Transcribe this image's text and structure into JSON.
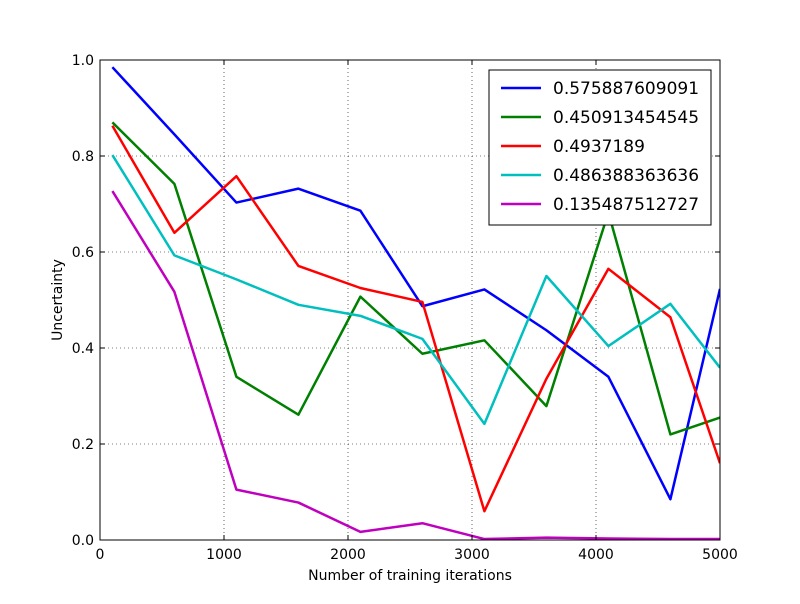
{
  "chart_data": {
    "type": "line",
    "title": "",
    "xlabel": "Number of training iterations",
    "ylabel": "Uncertainty",
    "xlim": [
      0,
      5000
    ],
    "ylim": [
      0.0,
      1.0
    ],
    "xticks": [
      0,
      1000,
      2000,
      3000,
      4000,
      5000
    ],
    "xtick_labels": [
      "0",
      "1000",
      "2000",
      "3000",
      "4000",
      "5000"
    ],
    "yticks": [
      0.0,
      0.2,
      0.4,
      0.6,
      0.8,
      1.0
    ],
    "ytick_labels": [
      "0.0",
      "0.2",
      "0.4",
      "0.6",
      "0.8",
      "1.0"
    ],
    "grid": true,
    "grid_style": "dotted",
    "legend_position": "top-right",
    "x": [
      100,
      600,
      1100,
      1600,
      2100,
      2600,
      3100,
      3600,
      4100,
      4600,
      5000
    ],
    "series": [
      {
        "name": "0.575887609091",
        "color": "#0000ff",
        "values": [
          0.985,
          0.845,
          0.703,
          0.732,
          0.686,
          0.487,
          0.522,
          0.437,
          0.34,
          0.085,
          0.523
        ]
      },
      {
        "name": "0.450913454545",
        "color": "#008000",
        "values": [
          0.87,
          0.742,
          0.34,
          0.261,
          0.507,
          0.388,
          0.416,
          0.279,
          0.682,
          0.22,
          0.255
        ]
      },
      {
        "name": "0.4937189",
        "color": "#ff0000",
        "values": [
          0.863,
          0.64,
          0.758,
          0.571,
          0.525,
          0.496,
          0.06,
          0.336,
          0.565,
          0.464,
          0.16
        ]
      },
      {
        "name": "0.486388363636",
        "color": "#00bfbf",
        "values": [
          0.802,
          0.593,
          0.543,
          0.49,
          0.467,
          0.419,
          0.242,
          0.55,
          0.404,
          0.492,
          0.359
        ]
      },
      {
        "name": "0.135487512727",
        "color": "#bf00bf",
        "values": [
          0.727,
          0.517,
          0.105,
          0.078,
          0.017,
          0.035,
          0.002,
          0.005,
          0.003,
          0.002,
          0.002
        ]
      }
    ]
  }
}
